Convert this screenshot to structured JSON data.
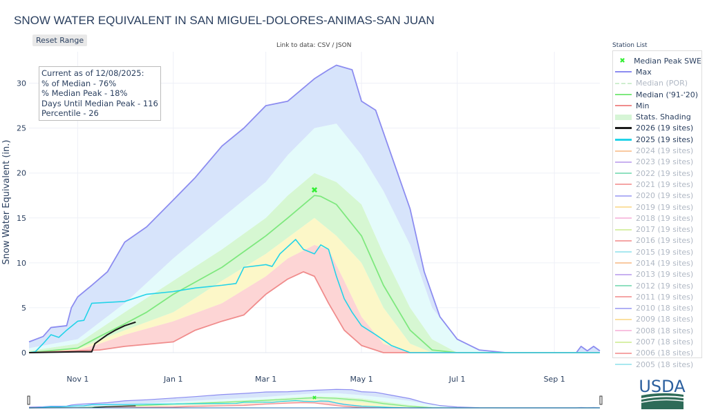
{
  "title": "SNOW WATER EQUIVALENT IN SAN MIGUEL-DOLORES-ANIMAS-SAN JUAN",
  "reset_label": "Reset Range",
  "link": {
    "prefix": "Link to data: ",
    "csv": "CSV",
    "sep": " / ",
    "json": "JSON"
  },
  "info": {
    "line1": "Current as of 12/08/2025:",
    "line2": "% of Median - 76%",
    "line3": "% Median Peak - 18%",
    "line4": "Days Until Median Peak - 116",
    "line5": "Percentile - 26"
  },
  "station_list_label": "Station List",
  "legend": [
    {
      "label": "Median Peak SWE",
      "color": "#33ee33",
      "style": "marker",
      "active": true
    },
    {
      "label": "Max",
      "color": "#8c8cf0",
      "style": "line",
      "active": true
    },
    {
      "label": "Median (POR)",
      "color": "#cfeecf",
      "style": "dash",
      "active": false
    },
    {
      "label": "Median ('91-'20)",
      "color": "#7ee87e",
      "style": "line",
      "active": true
    },
    {
      "label": "Min",
      "color": "#f08c8c",
      "style": "line",
      "active": true
    },
    {
      "label": "Stats. Shading",
      "color": "#d6f5d6",
      "style": "band",
      "active": true
    },
    {
      "label": "2026 (19 sites)",
      "color": "#1a1a1a",
      "style": "line",
      "active": true
    },
    {
      "label": "2025 (19 sites)",
      "color": "#22d3e8",
      "style": "line",
      "active": true
    },
    {
      "label": "2024 (19 sites)",
      "color": "#f9c9a0",
      "style": "line",
      "active": false
    },
    {
      "label": "2023 (19 sites)",
      "color": "#c8b0f0",
      "style": "line",
      "active": false
    },
    {
      "label": "2022 (19 sites)",
      "color": "#8fe0c0",
      "style": "line",
      "active": false
    },
    {
      "label": "2021 (19 sites)",
      "color": "#f5a5a5",
      "style": "line",
      "active": false
    },
    {
      "label": "2020 (19 sites)",
      "color": "#b0b0f5",
      "style": "line",
      "active": false
    },
    {
      "label": "2019 (19 sites)",
      "color": "#fbe0a0",
      "style": "line",
      "active": false
    },
    {
      "label": "2018 (19 sites)",
      "color": "#f8c0e0",
      "style": "line",
      "active": false
    },
    {
      "label": "2017 (19 sites)",
      "color": "#d8f0a8",
      "style": "line",
      "active": false
    },
    {
      "label": "2016 (19 sites)",
      "color": "#f5a5a5",
      "style": "line",
      "active": false
    },
    {
      "label": "2015 (19 sites)",
      "color": "#a8e8f0",
      "style": "line",
      "active": false
    },
    {
      "label": "2014 (19 sites)",
      "color": "#f9c9a0",
      "style": "line",
      "active": false
    },
    {
      "label": "2013 (19 sites)",
      "color": "#c8b0f0",
      "style": "line",
      "active": false
    },
    {
      "label": "2012 (19 sites)",
      "color": "#8fe0c0",
      "style": "line",
      "active": false
    },
    {
      "label": "2011 (19 sites)",
      "color": "#f5a5a5",
      "style": "line",
      "active": false
    },
    {
      "label": "2010 (18 sites)",
      "color": "#b0b0f5",
      "style": "line",
      "active": false
    },
    {
      "label": "2009 (18 sites)",
      "color": "#fbe0a0",
      "style": "line",
      "active": false
    },
    {
      "label": "2008 (18 sites)",
      "color": "#f8c0e0",
      "style": "line",
      "active": false
    },
    {
      "label": "2007 (18 sites)",
      "color": "#d8f0a8",
      "style": "line",
      "active": false
    },
    {
      "label": "2006 (18 sites)",
      "color": "#f5a5a5",
      "style": "line",
      "active": false
    },
    {
      "label": "2005 (18 sites)",
      "color": "#a8e8f0",
      "style": "line",
      "active": false
    }
  ],
  "logo_text": "USDA",
  "chart_data": {
    "type": "line",
    "title": "SNOW WATER EQUIVALENT IN SAN MIGUEL-DOLORES-ANIMAS-SAN JUAN",
    "xlabel": "",
    "ylabel": "Snow Water Equivalent (in.)",
    "x_range": [
      "10-01",
      "09-30"
    ],
    "ylim": [
      0,
      33.5
    ],
    "x_ticks": [
      {
        "date": "11-01",
        "label": "Nov 1"
      },
      {
        "date": "01-01",
        "label": "Jan 1"
      },
      {
        "date": "03-01",
        "label": "Mar 1"
      },
      {
        "date": "05-01",
        "label": "May 1"
      },
      {
        "date": "07-01",
        "label": "Jul 1"
      },
      {
        "date": "09-01",
        "label": "Sep 1"
      }
    ],
    "y_ticks": [
      0,
      5,
      10,
      15,
      20,
      25,
      30
    ],
    "grid": true,
    "legend_position": "right",
    "shading_colors": [
      "#fdd5d5",
      "#fcf7c8",
      "#d6f7d2",
      "#e4fbfb",
      "#d7e4fb"
    ],
    "series": [
      {
        "key": "max",
        "name": "Max",
        "color": "#8c8cf0",
        "points": [
          [
            "10-01",
            1.2
          ],
          [
            "10-10",
            1.8
          ],
          [
            "10-15",
            2.8
          ],
          [
            "10-25",
            3.0
          ],
          [
            "10-28",
            5.0
          ],
          [
            "11-01",
            6.2
          ],
          [
            "11-10",
            7.5
          ],
          [
            "11-20",
            9.0
          ],
          [
            "12-01",
            12.3
          ],
          [
            "12-15",
            14.0
          ],
          [
            "01-01",
            17.0
          ],
          [
            "01-15",
            19.5
          ],
          [
            "02-01",
            23.0
          ],
          [
            "02-15",
            25.0
          ],
          [
            "03-01",
            27.5
          ],
          [
            "03-15",
            28.0
          ],
          [
            "04-01",
            30.5
          ],
          [
            "04-10",
            31.5
          ],
          [
            "04-15",
            32.0
          ],
          [
            "04-25",
            31.5
          ],
          [
            "05-01",
            28.0
          ],
          [
            "05-10",
            27.0
          ],
          [
            "05-20",
            22.0
          ],
          [
            "06-01",
            16.0
          ],
          [
            "06-10",
            9.0
          ],
          [
            "06-20",
            4.0
          ],
          [
            "07-01",
            1.5
          ],
          [
            "07-15",
            0.3
          ],
          [
            "08-01",
            0
          ],
          [
            "09-15",
            0
          ],
          [
            "09-18",
            0.7
          ],
          [
            "09-22",
            0.2
          ],
          [
            "09-26",
            0.7
          ],
          [
            "09-30",
            0.2
          ]
        ]
      },
      {
        "key": "p90",
        "points": [
          [
            "10-01",
            0.5
          ],
          [
            "11-01",
            1.5
          ],
          [
            "12-01",
            5.5
          ],
          [
            "01-01",
            10.5
          ],
          [
            "02-01",
            15.0
          ],
          [
            "03-01",
            19.0
          ],
          [
            "03-15",
            22.0
          ],
          [
            "04-01",
            25.0
          ],
          [
            "04-15",
            25.5
          ],
          [
            "05-01",
            22.0
          ],
          [
            "05-15",
            18.0
          ],
          [
            "06-01",
            12.0
          ],
          [
            "06-15",
            5.0
          ],
          [
            "07-01",
            1.5
          ],
          [
            "07-15",
            0.2
          ],
          [
            "08-01",
            0
          ],
          [
            "09-30",
            0
          ]
        ]
      },
      {
        "key": "p70",
        "points": [
          [
            "10-01",
            0.2
          ],
          [
            "11-01",
            1.0
          ],
          [
            "12-01",
            4.5
          ],
          [
            "01-01",
            8.0
          ],
          [
            "02-01",
            11.5
          ],
          [
            "03-01",
            15.0
          ],
          [
            "03-15",
            17.5
          ],
          [
            "04-01",
            20.0
          ],
          [
            "04-15",
            19.0
          ],
          [
            "05-01",
            16.5
          ],
          [
            "05-15",
            11.0
          ],
          [
            "06-01",
            5.0
          ],
          [
            "06-15",
            1.5
          ],
          [
            "07-01",
            0
          ],
          [
            "09-30",
            0
          ]
        ]
      },
      {
        "key": "median",
        "name": "Median ('91-'20)",
        "color": "#7ee87e",
        "points": [
          [
            "10-01",
            0
          ],
          [
            "11-01",
            0.5
          ],
          [
            "11-15",
            1.8
          ],
          [
            "12-01",
            3.2
          ],
          [
            "12-15",
            4.5
          ],
          [
            "01-01",
            6.5
          ],
          [
            "02-01",
            9.5
          ],
          [
            "03-01",
            13.0
          ],
          [
            "03-15",
            15.0
          ],
          [
            "04-01",
            17.5
          ],
          [
            "04-05",
            17.4
          ],
          [
            "04-15",
            16.5
          ],
          [
            "05-01",
            13.0
          ],
          [
            "05-15",
            7.5
          ],
          [
            "06-01",
            2.5
          ],
          [
            "06-15",
            0.3
          ],
          [
            "07-01",
            0
          ],
          [
            "09-30",
            0
          ]
        ]
      },
      {
        "key": "p30",
        "points": [
          [
            "10-01",
            0
          ],
          [
            "11-01",
            0.4
          ],
          [
            "12-01",
            2.5
          ],
          [
            "01-01",
            4.5
          ],
          [
            "02-01",
            8.0
          ],
          [
            "03-01",
            11.0
          ],
          [
            "04-01",
            15.0
          ],
          [
            "04-15",
            13.0
          ],
          [
            "05-01",
            10.0
          ],
          [
            "05-15",
            5.0
          ],
          [
            "06-01",
            1.0
          ],
          [
            "06-15",
            0
          ],
          [
            "09-30",
            0
          ]
        ]
      },
      {
        "key": "p10",
        "points": [
          [
            "10-01",
            0
          ],
          [
            "11-01",
            0.3
          ],
          [
            "11-15",
            1.0
          ],
          [
            "12-01",
            2.0
          ],
          [
            "01-01",
            3.5
          ],
          [
            "02-01",
            5.5
          ],
          [
            "03-01",
            8.5
          ],
          [
            "03-15",
            10.5
          ],
          [
            "04-01",
            12.0
          ],
          [
            "04-10",
            11.5
          ],
          [
            "04-20",
            8.0
          ],
          [
            "05-01",
            4.0
          ],
          [
            "05-15",
            1.0
          ],
          [
            "06-01",
            0
          ],
          [
            "09-30",
            0
          ]
        ]
      },
      {
        "key": "min",
        "name": "Min",
        "color": "#f08c8c",
        "points": [
          [
            "10-01",
            0
          ],
          [
            "11-15",
            0.3
          ],
          [
            "12-01",
            0.7
          ],
          [
            "01-01",
            1.2
          ],
          [
            "01-15",
            2.5
          ],
          [
            "02-01",
            3.5
          ],
          [
            "02-15",
            4.2
          ],
          [
            "03-01",
            6.5
          ],
          [
            "03-15",
            8.2
          ],
          [
            "03-25",
            9.0
          ],
          [
            "04-01",
            8.5
          ],
          [
            "04-10",
            5.5
          ],
          [
            "04-20",
            2.5
          ],
          [
            "05-01",
            0.8
          ],
          [
            "05-15",
            0
          ],
          [
            "09-30",
            0
          ]
        ]
      },
      {
        "key": "y2025",
        "name": "2025 (19 sites)",
        "color": "#22d3e8",
        "points": [
          [
            "10-01",
            0
          ],
          [
            "10-05",
            0.1
          ],
          [
            "10-10",
            1.0
          ],
          [
            "10-15",
            2.0
          ],
          [
            "10-20",
            1.7
          ],
          [
            "10-25",
            2.5
          ],
          [
            "11-01",
            3.5
          ],
          [
            "11-05",
            3.6
          ],
          [
            "11-10",
            5.5
          ],
          [
            "12-01",
            5.7
          ],
          [
            "12-15",
            6.5
          ],
          [
            "01-01",
            6.8
          ],
          [
            "01-15",
            7.2
          ],
          [
            "02-01",
            7.5
          ],
          [
            "02-10",
            7.7
          ],
          [
            "02-15",
            9.5
          ],
          [
            "03-01",
            9.8
          ],
          [
            "03-05",
            9.6
          ],
          [
            "03-10",
            11.0
          ],
          [
            "03-20",
            12.6
          ],
          [
            "03-25",
            11.5
          ],
          [
            "04-01",
            11.0
          ],
          [
            "04-05",
            12.0
          ],
          [
            "04-10",
            11.5
          ],
          [
            "04-15",
            8.5
          ],
          [
            "04-20",
            6.0
          ],
          [
            "04-25",
            4.5
          ],
          [
            "05-01",
            3.0
          ],
          [
            "05-10",
            2.0
          ],
          [
            "05-20",
            0.8
          ],
          [
            "06-01",
            0
          ],
          [
            "09-30",
            0
          ]
        ]
      },
      {
        "key": "y2026",
        "name": "2026 (19 sites)",
        "color": "#1a1a1a",
        "points": [
          [
            "10-01",
            0
          ],
          [
            "11-01",
            0.1
          ],
          [
            "11-10",
            0.1
          ],
          [
            "11-12",
            1.0
          ],
          [
            "11-20",
            2.0
          ],
          [
            "11-25",
            2.5
          ],
          [
            "12-01",
            3.0
          ],
          [
            "12-08",
            3.4
          ]
        ]
      }
    ],
    "median_peak": {
      "name": "Median Peak SWE",
      "date": "04-01",
      "value": 18.1,
      "color": "#33ee33"
    }
  }
}
